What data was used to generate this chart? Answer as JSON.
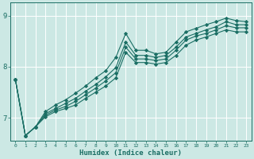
{
  "xlabel": "Humidex (Indice chaleur)",
  "bg_color": "#cce8e4",
  "grid_color": "#ffffff",
  "line_color": "#1a6e64",
  "xlim": [
    -0.5,
    23.5
  ],
  "ylim": [
    6.55,
    9.25
  ],
  "yticks": [
    7,
    8,
    9
  ],
  "xticks": [
    0,
    1,
    2,
    3,
    4,
    5,
    6,
    7,
    8,
    9,
    10,
    11,
    12,
    13,
    14,
    15,
    16,
    17,
    18,
    19,
    20,
    21,
    22,
    23
  ],
  "series": [
    [
      7.75,
      6.65,
      6.82,
      7.12,
      7.25,
      7.35,
      7.48,
      7.62,
      7.78,
      7.92,
      8.18,
      8.65,
      8.32,
      8.32,
      8.25,
      8.28,
      8.48,
      8.68,
      8.75,
      8.82,
      8.88,
      8.95,
      8.9,
      8.88
    ],
    [
      7.75,
      6.65,
      6.82,
      7.08,
      7.18,
      7.28,
      7.38,
      7.52,
      7.65,
      7.8,
      7.98,
      8.48,
      8.22,
      8.22,
      8.18,
      8.22,
      8.38,
      8.58,
      8.65,
      8.72,
      8.78,
      8.88,
      8.82,
      8.82
    ],
    [
      7.75,
      6.65,
      6.82,
      7.05,
      7.15,
      7.22,
      7.32,
      7.45,
      7.58,
      7.72,
      7.88,
      8.38,
      8.15,
      8.15,
      8.12,
      8.15,
      8.32,
      8.52,
      8.6,
      8.65,
      8.72,
      8.8,
      8.76,
      8.76
    ],
    [
      7.75,
      6.65,
      6.82,
      7.02,
      7.12,
      7.18,
      7.25,
      7.38,
      7.5,
      7.62,
      7.78,
      8.28,
      8.08,
      8.08,
      8.05,
      8.08,
      8.22,
      8.42,
      8.52,
      8.58,
      8.65,
      8.72,
      8.68,
      8.68
    ]
  ]
}
